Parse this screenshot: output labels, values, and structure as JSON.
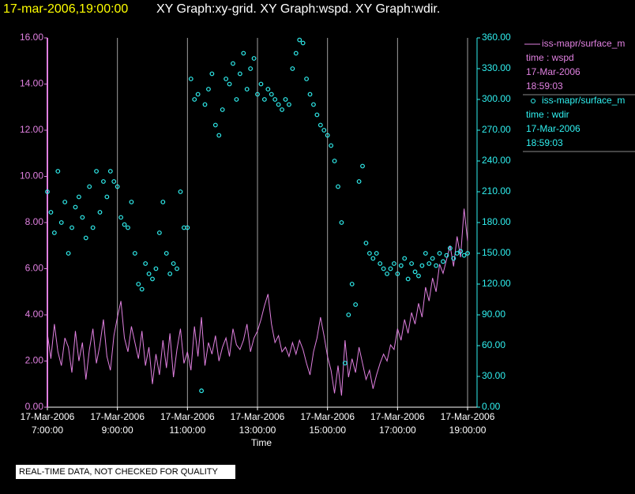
{
  "chart_data": {
    "type": "xy",
    "title_time": "17-mar-2006,19:00:00",
    "title": "XY Graph:xy-grid.  XY Graph:wspd.  XY Graph:wdir.",
    "xlabel": "Time",
    "footer": "REAL-TIME DATA, NOT CHECKED FOR QUALITY",
    "grid": true,
    "xlim": [
      7,
      19.27
    ],
    "xticks": [
      {
        "value": 7,
        "label": "17-Mar-2006 7:00:00"
      },
      {
        "value": 9,
        "label": "17-Mar-2006 9:00:00"
      },
      {
        "value": 11,
        "label": "17-Mar-2006 11:00:00"
      },
      {
        "value": 13,
        "label": "17-Mar-2006 13:00:00"
      },
      {
        "value": 15,
        "label": "17-Mar-2006 15:00:00"
      },
      {
        "value": 17,
        "label": "17-Mar-2006 17:00:00"
      },
      {
        "value": 19,
        "label": "17-Mar-2006 19:00:00"
      }
    ],
    "ylim": [
      0,
      16
    ],
    "yticks": [
      {
        "value": 0,
        "label": "0.00"
      },
      {
        "value": 2,
        "label": "2.00"
      },
      {
        "value": 4,
        "label": "4.00"
      },
      {
        "value": 6,
        "label": "6.00"
      },
      {
        "value": 8,
        "label": "8.00"
      },
      {
        "value": 10,
        "label": "10.00"
      },
      {
        "value": 12,
        "label": "12.00"
      },
      {
        "value": 14,
        "label": "14.00"
      },
      {
        "value": 16,
        "label": "16.00"
      }
    ],
    "y2lim": [
      0,
      360
    ],
    "y2ticks": [
      {
        "value": 0,
        "label": "0.00"
      },
      {
        "value": 30,
        "label": "30.00"
      },
      {
        "value": 60,
        "label": "60.00"
      },
      {
        "value": 90,
        "label": "90.00"
      },
      {
        "value": 120,
        "label": "120.00"
      },
      {
        "value": 150,
        "label": "150.00"
      },
      {
        "value": 180,
        "label": "180.00"
      },
      {
        "value": 210,
        "label": "210.00"
      },
      {
        "value": 240,
        "label": "240.00"
      },
      {
        "value": 270,
        "label": "270.00"
      },
      {
        "value": 300,
        "label": "300.00"
      },
      {
        "value": 330,
        "label": "330.00"
      },
      {
        "value": 360,
        "label": "360.00"
      }
    ],
    "x": [
      7.0,
      7.1,
      7.2,
      7.3,
      7.4,
      7.5,
      7.6,
      7.7,
      7.8,
      7.9,
      8.0,
      8.1,
      8.2,
      8.3,
      8.4,
      8.5,
      8.6,
      8.7,
      8.8,
      8.9,
      9.0,
      9.1,
      9.2,
      9.3,
      9.4,
      9.5,
      9.6,
      9.7,
      9.8,
      9.9,
      10.0,
      10.1,
      10.2,
      10.3,
      10.4,
      10.5,
      10.6,
      10.7,
      10.8,
      10.9,
      11.0,
      11.1,
      11.2,
      11.3,
      11.4,
      11.5,
      11.6,
      11.7,
      11.8,
      11.9,
      12.0,
      12.1,
      12.2,
      12.3,
      12.4,
      12.5,
      12.6,
      12.7,
      12.8,
      12.9,
      13.0,
      13.1,
      13.2,
      13.3,
      13.4,
      13.5,
      13.6,
      13.7,
      13.8,
      13.9,
      14.0,
      14.1,
      14.2,
      14.3,
      14.4,
      14.5,
      14.6,
      14.7,
      14.8,
      14.9,
      15.0,
      15.1,
      15.2,
      15.3,
      15.4,
      15.5,
      15.6,
      15.7,
      15.8,
      15.9,
      16.0,
      16.1,
      16.2,
      16.3,
      16.4,
      16.5,
      16.6,
      16.7,
      16.8,
      16.9,
      17.0,
      17.1,
      17.2,
      17.3,
      17.4,
      17.5,
      17.6,
      17.7,
      17.8,
      17.9,
      18.0,
      18.1,
      18.2,
      18.3,
      18.4,
      18.5,
      18.6,
      18.7,
      18.8,
      18.9,
      19.0
    ],
    "series": [
      {
        "name": "iss-mapr/surface_m",
        "kind": "line",
        "color": "#e080e0",
        "legend_lines": [
          "time : wspd",
          "17-Mar-2006",
          "18:59:03"
        ],
        "values": [
          3.2,
          2.1,
          3.6,
          2.4,
          1.8,
          3.0,
          2.6,
          1.5,
          3.3,
          2.0,
          2.8,
          1.2,
          2.5,
          3.4,
          1.9,
          2.7,
          3.8,
          2.2,
          1.6,
          3.1,
          3.9,
          4.6,
          3.0,
          2.4,
          3.5,
          2.8,
          2.1,
          3.3,
          1.8,
          2.6,
          1.0,
          2.3,
          1.4,
          2.9,
          1.7,
          3.2,
          1.3,
          2.5,
          3.4,
          1.9,
          2.4,
          1.6,
          3.5,
          2.2,
          3.9,
          1.8,
          2.8,
          2.3,
          3.1,
          2.0,
          2.6,
          3.0,
          2.2,
          3.4,
          2.7,
          2.5,
          2.9,
          3.6,
          2.4,
          3.0,
          3.3,
          3.8,
          4.4,
          4.9,
          3.6,
          2.8,
          3.1,
          2.4,
          2.6,
          2.2,
          2.8,
          2.3,
          2.9,
          2.5,
          1.9,
          1.4,
          2.4,
          3.0,
          3.9,
          3.1,
          2.2,
          1.6,
          0.6,
          1.8,
          0.5,
          2.9,
          1.3,
          2.1,
          1.5,
          2.6,
          1.9,
          1.2,
          1.6,
          0.8,
          1.4,
          1.9,
          2.3,
          2.0,
          2.7,
          2.5,
          3.4,
          2.9,
          3.8,
          3.2,
          4.1,
          3.6,
          4.5,
          3.9,
          5.2,
          4.6,
          5.6,
          5.0,
          6.2,
          5.8,
          6.4,
          7.0,
          6.1,
          7.4,
          6.5,
          8.6,
          7.2
        ]
      },
      {
        "name": "iss-mapr/surface_m",
        "kind": "scatter",
        "axis": "y2",
        "color": "#30f0f0",
        "legend_lines": [
          "time : wdir",
          "17-Mar-2006",
          "18:59:03"
        ],
        "values": [
          210,
          190,
          170,
          230,
          180,
          200,
          150,
          175,
          195,
          205,
          185,
          165,
          215,
          175,
          230,
          190,
          220,
          205,
          230,
          220,
          215,
          185,
          178,
          175,
          200,
          150,
          120,
          115,
          140,
          130,
          125,
          135,
          170,
          200,
          150,
          130,
          140,
          135,
          210,
          175,
          175,
          320,
          300,
          305,
          16,
          295,
          310,
          325,
          275,
          265,
          290,
          320,
          315,
          335,
          300,
          325,
          345,
          310,
          330,
          340,
          305,
          315,
          300,
          310,
          305,
          300,
          295,
          290,
          300,
          295,
          330,
          345,
          358,
          355,
          320,
          305,
          295,
          285,
          275,
          270,
          265,
          255,
          240,
          215,
          180,
          43,
          90,
          120,
          100,
          220,
          235,
          160,
          150,
          145,
          150,
          140,
          135,
          130,
          135,
          140,
          130,
          138,
          145,
          125,
          140,
          132,
          128,
          138,
          150,
          140,
          145,
          138,
          150,
          142,
          148,
          155,
          145,
          150,
          152,
          148,
          150
        ]
      }
    ]
  }
}
